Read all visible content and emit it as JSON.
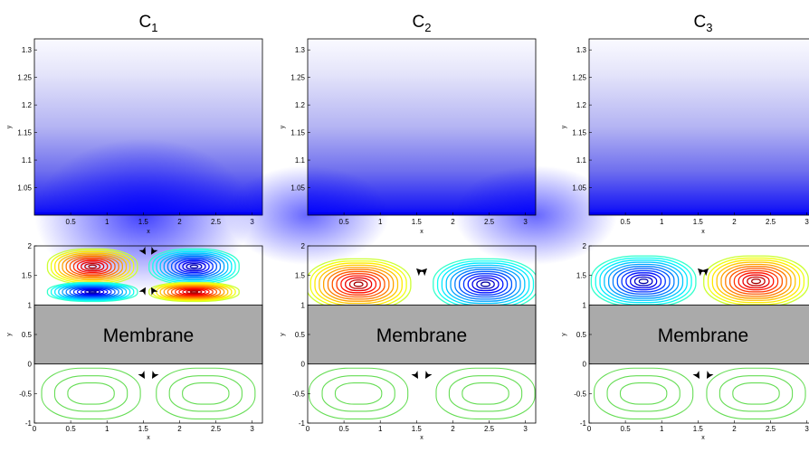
{
  "panels": [
    {
      "title": "C",
      "subscript": "1"
    },
    {
      "title": "C",
      "subscript": "2"
    },
    {
      "title": "C",
      "subscript": "3"
    }
  ],
  "membrane_label": "Membrane",
  "colors": {
    "concentration_high": "#0000ff",
    "concentration_low": "#ffffff",
    "membrane_fill": "#aaaaaa",
    "lower_streamlines": "#66dd55",
    "arrow": "#000000"
  },
  "chart_data": [
    {
      "type": "heatmap",
      "panel": "C1",
      "title": "C1",
      "xlabel": "x",
      "ylabel": "y",
      "xlim": [
        0,
        3.1416
      ],
      "ylim": [
        1,
        1.32
      ],
      "xticks": [
        "0.5",
        "1",
        "1.5",
        "2",
        "2.5",
        "3"
      ],
      "yticks": [
        "1.05",
        "1.1",
        "1.15",
        "1.2",
        "1.25",
        "1.3"
      ],
      "colormap": "white-to-blue",
      "max_concentration_x": 1.5
    },
    {
      "type": "heatmap",
      "panel": "C2",
      "title": "C2",
      "xlabel": "x",
      "ylabel": "y",
      "xlim": [
        0,
        3.1416
      ],
      "ylim": [
        1,
        1.32
      ],
      "xticks": [
        "0.5",
        "1",
        "1.5",
        "2",
        "2.5",
        "3"
      ],
      "yticks": [
        "1.05",
        "1.1",
        "1.15",
        "1.2",
        "1.25",
        "1.3"
      ],
      "colormap": "white-to-blue",
      "max_concentration_x": [
        0,
        3.1416
      ]
    },
    {
      "type": "heatmap",
      "panel": "C3",
      "title": "C3",
      "xlabel": "x",
      "ylabel": "y",
      "xlim": [
        0,
        3.1416
      ],
      "ylim": [
        1,
        1.32
      ],
      "xticks": [
        "0.5",
        "1",
        "1.5",
        "2",
        "2.5",
        "3"
      ],
      "yticks": [
        "1.05",
        "1.1",
        "1.15",
        "1.2",
        "1.25",
        "1.3"
      ],
      "colormap": "white-to-blue",
      "max_concentration_x": "uniform"
    },
    {
      "type": "streamlines",
      "panel": "C1",
      "xlabel": "x",
      "ylabel": "y",
      "xlim": [
        0,
        3.1416
      ],
      "ylim": [
        -1,
        2
      ],
      "xticks": [
        "0",
        "0.5",
        "1",
        "1.5",
        "2",
        "2.5",
        "3"
      ],
      "yticks": [
        "-1",
        "-0.5",
        "0",
        "0.5",
        "1",
        "1.5",
        "2"
      ],
      "upper_vortices": [
        {
          "cx": 0.8,
          "cy": 1.65,
          "sign": 1
        },
        {
          "cx": 2.2,
          "cy": 1.65,
          "sign": -1
        },
        {
          "cx": 0.8,
          "cy": 1.22,
          "sign": -1
        },
        {
          "cx": 2.2,
          "cy": 1.22,
          "sign": 1
        }
      ],
      "lower_vortices": [
        {
          "cx": 0.78,
          "cy": -0.5
        },
        {
          "cx": 2.36,
          "cy": -0.5
        }
      ]
    },
    {
      "type": "streamlines",
      "panel": "C2",
      "xlabel": "x",
      "ylabel": "y",
      "xlim": [
        0,
        3.1416
      ],
      "ylim": [
        -1,
        2
      ],
      "xticks": [
        "0",
        "0.5",
        "1",
        "1.5",
        "2",
        "2.5",
        "3"
      ],
      "yticks": [
        "-1",
        "-0.5",
        "0",
        "0.5",
        "1",
        "1.5",
        "2"
      ],
      "upper_vortices": [
        {
          "cx": 0.7,
          "cy": 1.35,
          "sign": 1
        },
        {
          "cx": 2.45,
          "cy": 1.35,
          "sign": -1
        }
      ],
      "lower_vortices": [
        {
          "cx": 0.7,
          "cy": -0.5
        },
        {
          "cx": 2.45,
          "cy": -0.5
        }
      ]
    },
    {
      "type": "streamlines",
      "panel": "C3",
      "xlabel": "x",
      "ylabel": "y",
      "xlim": [
        0,
        3.1416
      ],
      "ylim": [
        -1,
        2
      ],
      "xticks": [
        "0",
        "0.5",
        "1",
        "1.5",
        "2",
        "2.5",
        "3"
      ],
      "yticks": [
        "-1",
        "-0.5",
        "0",
        "0.5",
        "1",
        "1.5",
        "2"
      ],
      "upper_vortices": [
        {
          "cx": 0.75,
          "cy": 1.4,
          "sign": -1
        },
        {
          "cx": 2.3,
          "cy": 1.4,
          "sign": 1
        }
      ],
      "lower_vortices": [
        {
          "cx": 0.75,
          "cy": -0.5
        },
        {
          "cx": 2.3,
          "cy": -0.5
        }
      ]
    }
  ]
}
